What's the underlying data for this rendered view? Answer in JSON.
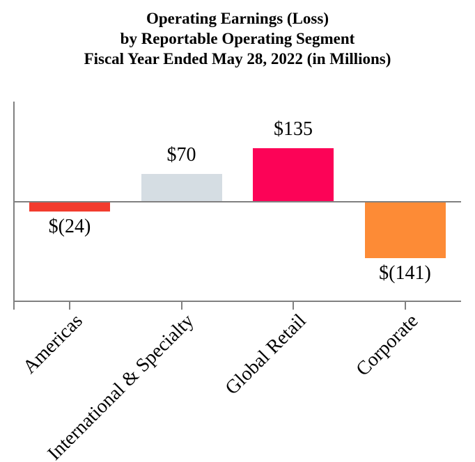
{
  "header": {
    "title_lines": [
      "Operating Earnings (Loss)",
      "by Reportable Operating Segment",
      "Fiscal Year Ended May 28, 2022 (in Millions)"
    ]
  },
  "chart_data": {
    "type": "bar",
    "title": "Operating Earnings (Loss) by Reportable Operating Segment Fiscal Year Ended May 28, 2022 (in Millions)",
    "categories": [
      "Americas",
      "International & Specialty",
      "Global Retail",
      "Corporate"
    ],
    "values": [
      -24,
      70,
      135,
      -141
    ],
    "value_labels": [
      "$(24)",
      "$70",
      "$135",
      "$(141)"
    ],
    "bar_colors": [
      "#f23c2e",
      "#d5dde3",
      "#fc0357",
      "#fd8b36"
    ],
    "axis_color": "#808080",
    "text_color": "#000000",
    "xlabel": "",
    "ylabel": "",
    "ylim": [
      -250,
      252
    ],
    "baseline": 0,
    "grid": false,
    "legend": false,
    "value_label_position": "outside-end",
    "category_label_rotation_deg": -45
  }
}
